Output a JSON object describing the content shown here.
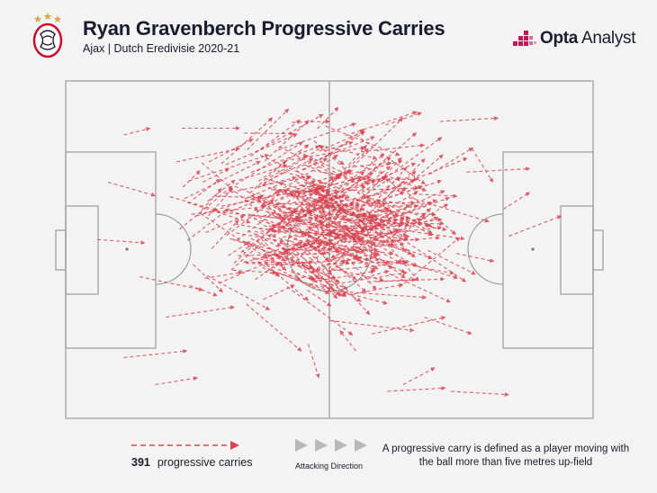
{
  "header": {
    "title": "Ryan Gravenberch Progressive Carries",
    "subtitle": "Ajax | Dutch Eredivisie 2020-21",
    "brand_name_bold": "Opta",
    "brand_name_rest": " Analyst",
    "crest_icon": "ajax-crest-icon"
  },
  "legend": {
    "count": "391",
    "count_label": "progressive carries",
    "direction_label": "Attacking Direction",
    "definition": "A progressive carry is defined as a player moving with the ball more than five metres up-field"
  },
  "colors": {
    "carry": "#d8434f",
    "pitch_line": "#9a9a9a",
    "background": "#f3f3f3",
    "brand_pink": "#c2185b",
    "direction_arrow": "#b8b8b8"
  },
  "chart_data": {
    "type": "pitch-arrow-map",
    "pitch": {
      "x_range": [
        0,
        100
      ],
      "y_range": [
        0,
        100
      ],
      "attacking_direction": "left-to-right"
    },
    "total_carries": 391,
    "sample_carries": [
      {
        "start": [
          11,
          84
        ],
        "end": [
          16,
          86
        ]
      },
      {
        "start": [
          22,
          86
        ],
        "end": [
          33,
          86
        ]
      },
      {
        "start": [
          8,
          70
        ],
        "end": [
          17,
          66
        ]
      },
      {
        "start": [
          6,
          53
        ],
        "end": [
          15,
          52
        ]
      },
      {
        "start": [
          21,
          76
        ],
        "end": [
          33,
          80
        ]
      },
      {
        "start": [
          23,
          64
        ],
        "end": [
          35,
          58
        ]
      },
      {
        "start": [
          35,
          66
        ],
        "end": [
          49,
          58
        ]
      },
      {
        "start": [
          26,
          70
        ],
        "end": [
          31,
          74
        ]
      },
      {
        "start": [
          43,
          66
        ],
        "end": [
          55,
          71
        ]
      },
      {
        "start": [
          48,
          81
        ],
        "end": [
          59,
          77
        ]
      },
      {
        "start": [
          56,
          79
        ],
        "end": [
          68,
          81
        ]
      },
      {
        "start": [
          71,
          88
        ],
        "end": [
          82,
          89
        ]
      },
      {
        "start": [
          76,
          73
        ],
        "end": [
          88,
          74
        ]
      },
      {
        "start": [
          77,
          80
        ],
        "end": [
          81,
          70
        ]
      },
      {
        "start": [
          83,
          62
        ],
        "end": [
          88,
          67
        ]
      },
      {
        "start": [
          84,
          54
        ],
        "end": [
          94,
          60
        ]
      },
      {
        "start": [
          14,
          42
        ],
        "end": [
          26,
          38
        ]
      },
      {
        "start": [
          19,
          30
        ],
        "end": [
          32,
          33
        ]
      },
      {
        "start": [
          29,
          40
        ],
        "end": [
          41,
          48
        ]
      },
      {
        "start": [
          39,
          44
        ],
        "end": [
          50,
          37
        ]
      },
      {
        "start": [
          46,
          40
        ],
        "end": [
          61,
          34
        ]
      },
      {
        "start": [
          50,
          29
        ],
        "end": [
          66,
          26
        ]
      },
      {
        "start": [
          58,
          25
        ],
        "end": [
          72,
          30
        ]
      },
      {
        "start": [
          68,
          30
        ],
        "end": [
          77,
          25
        ]
      },
      {
        "start": [
          17,
          10
        ],
        "end": [
          25,
          12
        ]
      },
      {
        "start": [
          11,
          18
        ],
        "end": [
          23,
          20
        ]
      },
      {
        "start": [
          61,
          8
        ],
        "end": [
          72,
          9
        ]
      },
      {
        "start": [
          73,
          8
        ],
        "end": [
          84,
          7
        ]
      },
      {
        "start": [
          64,
          10
        ],
        "end": [
          70,
          15
        ]
      },
      {
        "start": [
          55,
          20
        ],
        "end": [
          52,
          26
        ]
      },
      {
        "start": [
          46,
          22
        ],
        "end": [
          48,
          12
        ]
      }
    ]
  }
}
